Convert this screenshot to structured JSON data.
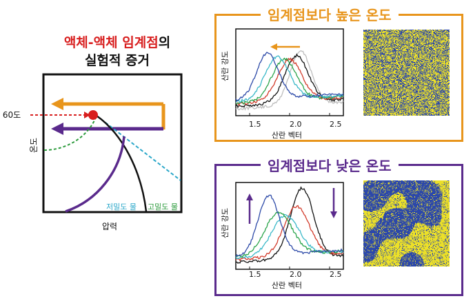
{
  "left": {
    "title_red": "액체-액체 임계점",
    "title_suffix": "의",
    "title_line2": "실험적 증거",
    "temp_marker": "영하 60도",
    "y_axis": "온도",
    "x_axis": "압력",
    "low_density_label": "저밀도 물",
    "high_density_label": "고밀도 물",
    "colors": {
      "orange": "#e8951c",
      "purple": "#5a2a8c",
      "red": "#d81e1e",
      "green": "#2a9a3a",
      "cyan": "#2aa7c9"
    }
  },
  "top_panel": {
    "title": "임계점보다 높은 온도",
    "color": "#e8951c",
    "y_label": "산란 강도",
    "x_label": "산란 벡터",
    "ticks": [
      "1.5",
      "2.0",
      "2.5"
    ]
  },
  "bottom_panel": {
    "title": "임계점보다 낮은 온도",
    "color": "#5a2a8c",
    "y_label": "산란 강도",
    "x_label": "산란 벡터",
    "ticks": [
      "1.5",
      "2.0",
      "2.5"
    ]
  },
  "series_colors": [
    "#2d4aa8",
    "#39b8c8",
    "#2aa44a",
    "#d23a2a",
    "#111111",
    "#bdbdbd"
  ]
}
